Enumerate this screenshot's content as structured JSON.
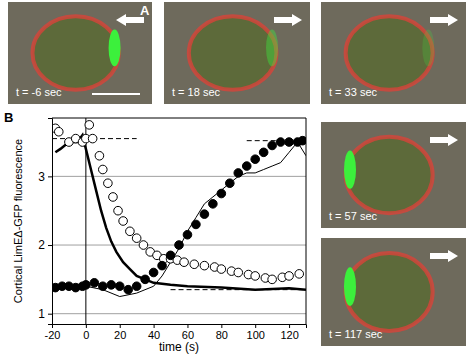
{
  "panel_labels": [
    "A",
    "B"
  ],
  "frames": [
    {
      "label": "t = -6 sec",
      "arrow": "left"
    },
    {
      "label": "t = 18 sec",
      "arrow": "right"
    },
    {
      "label": "t = 33 sec",
      "arrow": "right"
    },
    {
      "label": "t = 57 sec",
      "arrow": "right"
    },
    {
      "label": "t = 117 sec",
      "arrow": "right"
    }
  ],
  "chart_data": {
    "type": "scatter",
    "x_label": "time (s)",
    "y_label": "Cortical LimEΔ-GFP fluorescence",
    "xlim": [
      -20,
      130
    ],
    "ylim": [
      0.85,
      3.85
    ],
    "xticks": [
      -20,
      0,
      20,
      40,
      60,
      80,
      100,
      120
    ],
    "yticks": [
      1,
      2,
      3
    ],
    "grid": "y",
    "series": [
      {
        "type": "line",
        "line_style": "solid",
        "color": "#000000",
        "x": [
          0,
          0
        ],
        "values": [
          0.85,
          3.85
        ]
      },
      {
        "type": "line",
        "line_style": "dashed",
        "color": "#000000",
        "x": [
          -20,
          30
        ],
        "values": [
          3.55,
          3.55
        ]
      },
      {
        "type": "line",
        "line_style": "dashed",
        "color": "#000000",
        "x": [
          95,
          130
        ],
        "values": [
          3.52,
          3.52
        ]
      },
      {
        "type": "line",
        "line_style": "dashed",
        "color": "#000000",
        "x": [
          50,
          130
        ],
        "values": [
          1.35,
          1.35
        ]
      },
      {
        "type": "line",
        "line_style": "bold",
        "color": "#000000",
        "x": [
          -18,
          -15,
          -10,
          -5,
          -2,
          0,
          3,
          6,
          9,
          12,
          15,
          18,
          22,
          26,
          30,
          35,
          40,
          50,
          60,
          80,
          100,
          120,
          130
        ],
        "values": [
          3.35,
          3.4,
          3.5,
          3.5,
          3.6,
          3.4,
          3.1,
          2.8,
          2.5,
          2.25,
          2.05,
          1.9,
          1.75,
          1.65,
          1.55,
          1.5,
          1.45,
          1.42,
          1.4,
          1.38,
          1.35,
          1.37,
          1.35
        ]
      },
      {
        "type": "line",
        "line_style": "thin",
        "color": "#000000",
        "x": [
          -18,
          0,
          10,
          20,
          30,
          40,
          45,
          50,
          55,
          60,
          65,
          70,
          75,
          80,
          85,
          90,
          95,
          100,
          105,
          110,
          115,
          120,
          125,
          130
        ],
        "values": [
          1.35,
          1.4,
          1.35,
          1.25,
          1.3,
          1.4,
          1.55,
          1.75,
          1.95,
          2.2,
          2.4,
          2.6,
          2.7,
          2.8,
          2.9,
          3.0,
          3.05,
          3.05,
          3.1,
          3.15,
          3.2,
          3.35,
          3.5,
          3.3
        ]
      },
      {
        "type": "scatter",
        "marker": "circle-open",
        "color": "#000000",
        "x": [
          -18,
          -16,
          -10,
          -6,
          -2,
          0,
          2,
          4,
          8,
          10,
          13,
          16,
          19,
          22,
          26,
          30,
          34,
          38,
          42,
          46,
          50,
          54,
          58,
          64,
          70,
          76,
          80,
          86,
          90,
          96,
          100,
          106,
          110,
          116,
          120,
          126
        ],
        "values": [
          3.7,
          3.65,
          3.5,
          3.55,
          3.5,
          3.55,
          3.75,
          3.55,
          3.3,
          3.1,
          2.9,
          2.7,
          2.5,
          2.35,
          2.2,
          2.1,
          2.0,
          1.9,
          1.85,
          1.8,
          1.8,
          1.78,
          1.75,
          1.72,
          1.7,
          1.68,
          1.65,
          1.62,
          1.6,
          1.57,
          1.55,
          1.52,
          1.5,
          1.53,
          1.55,
          1.58
        ]
      },
      {
        "type": "scatter",
        "marker": "circle-filled",
        "color": "#000000",
        "x": [
          -18,
          -14,
          -10,
          -6,
          -2,
          0,
          5,
          10,
          15,
          20,
          25,
          30,
          35,
          40,
          45,
          50,
          55,
          60,
          65,
          70,
          75,
          80,
          85,
          90,
          95,
          100,
          105,
          110,
          115,
          120,
          125,
          128
        ],
        "values": [
          1.38,
          1.4,
          1.4,
          1.38,
          1.4,
          1.42,
          1.45,
          1.4,
          1.42,
          1.4,
          1.35,
          1.4,
          1.5,
          1.6,
          1.7,
          1.85,
          2.0,
          2.15,
          2.3,
          2.45,
          2.6,
          2.75,
          2.9,
          3.05,
          3.15,
          3.25,
          3.35,
          3.45,
          3.5,
          3.5,
          3.5,
          3.52
        ]
      }
    ]
  }
}
